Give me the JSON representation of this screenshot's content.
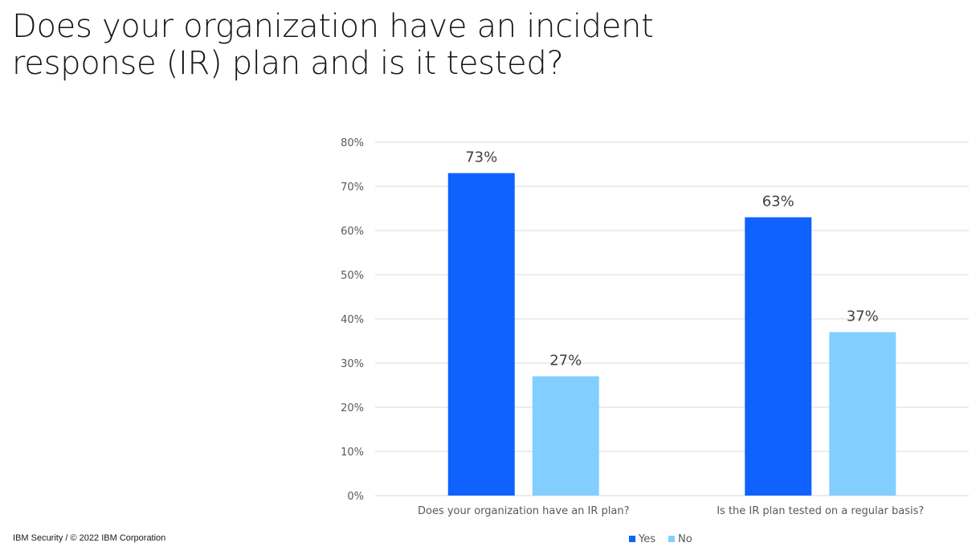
{
  "title": {
    "line1": "Does your organization have an incident",
    "line2": "response (IR) plan and is it tested?"
  },
  "footer": "IBM Security / © 2022 IBM Corporation",
  "colors": {
    "yes": "#0f62fe",
    "no": "#82cfff",
    "grid": "#d9d9d9",
    "axis_text": "#595959",
    "label_text": "#404040"
  },
  "chart_data": {
    "type": "bar",
    "categories": [
      "Does your organization have an IR plan?",
      "Is the IR plan tested on a regular basis?"
    ],
    "series": [
      {
        "name": "Yes",
        "values": [
          73,
          63
        ],
        "labels": [
          "73%",
          "63%"
        ]
      },
      {
        "name": "No",
        "values": [
          27,
          37
        ],
        "labels": [
          "27%",
          "37%"
        ]
      }
    ],
    "ylim": [
      0,
      80
    ],
    "yticks": [
      0,
      10,
      20,
      30,
      40,
      50,
      60,
      70,
      80
    ],
    "ytick_labels": [
      "0%",
      "10%",
      "20%",
      "30%",
      "40%",
      "50%",
      "60%",
      "70%",
      "80%"
    ],
    "grid": true,
    "legend": "bottom-center",
    "xlabel": "",
    "ylabel": ""
  }
}
